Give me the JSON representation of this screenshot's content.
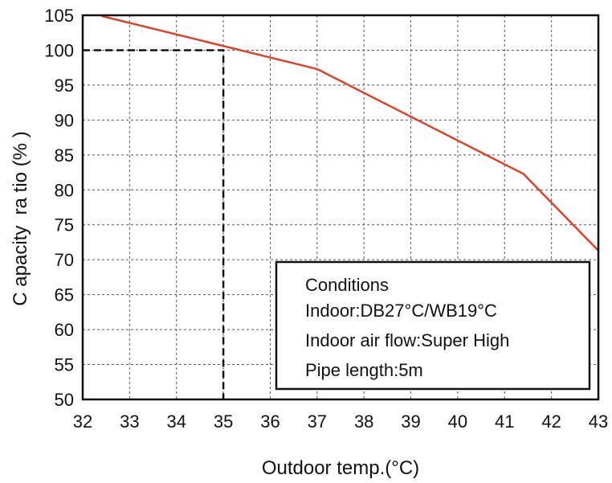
{
  "chart_data": {
    "type": "line",
    "xlabel": "Outdoor temp.(°C)",
    "ylabel": "C apacity  ra tio (% )",
    "xlim": [
      32,
      43
    ],
    "ylim": [
      50,
      105
    ],
    "x_ticks": [
      "32",
      "33",
      "34",
      "35",
      "36",
      "37",
      "38",
      "39",
      "40",
      "41",
      "42",
      "43"
    ],
    "y_ticks": [
      "50",
      "55",
      "60",
      "65",
      "70",
      "75",
      "80",
      "85",
      "90",
      "95",
      "100",
      "105"
    ],
    "grid": true,
    "series": [
      {
        "x": [
          32.4,
          37.0,
          41.4,
          43.0
        ],
        "y": [
          104.9,
          97.3,
          82.3,
          71.3
        ],
        "color": "#d9432a"
      }
    ],
    "reference": {
      "x": 35,
      "y": 100,
      "style": "dashed",
      "color": "#111111"
    },
    "annotation": {
      "lines": [
        "Conditions",
        "Indoor:DB27°C/WB19°C",
        "Indoor air flow:Super High",
        "Pipe length:5m"
      ],
      "placement": "bottom-right"
    }
  }
}
